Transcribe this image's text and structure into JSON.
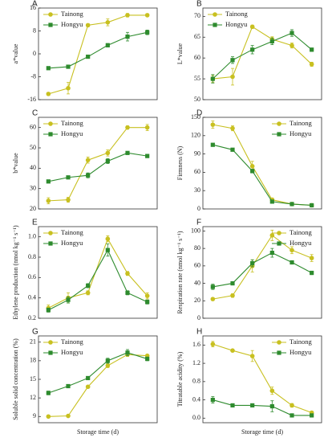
{
  "chart_data": [
    {
      "type": "line",
      "title": "A",
      "y_label": "a*value",
      "x": [
        1,
        3,
        5,
        7,
        9,
        11
      ],
      "xlim": [
        0,
        12
      ],
      "ylim": [
        -16,
        16
      ],
      "yticks": [
        -16,
        -8,
        0,
        8,
        16
      ],
      "legend": "upper left",
      "series": [
        {
          "name": "Tainong",
          "color": "#c8c020",
          "marker": "circle",
          "values": [
            -14,
            -12,
            10,
            11,
            13.5,
            13.5
          ],
          "errors": [
            0.5,
            2,
            0.5,
            1.2,
            0.6,
            0.5
          ]
        },
        {
          "name": "Hongyu",
          "color": "#2e8b2e",
          "marker": "square",
          "values": [
            -5,
            -4.5,
            -1,
            3,
            6,
            7.5
          ],
          "errors": [
            0.4,
            0.4,
            0.4,
            0.6,
            1.5,
            0.8
          ]
        }
      ]
    },
    {
      "type": "line",
      "title": "B",
      "y_label": "L*value",
      "x": [
        1,
        3,
        5,
        7,
        9,
        11
      ],
      "xlim": [
        0,
        12
      ],
      "ylim": [
        50,
        72
      ],
      "yticks": [
        50,
        55,
        60,
        65,
        70
      ],
      "legend": "upper left",
      "series": [
        {
          "name": "Tainong",
          "color": "#c8c020",
          "marker": "circle",
          "values": [
            55,
            55.5,
            67.5,
            64.5,
            63,
            58.5
          ],
          "errors": [
            0.8,
            2,
            0.4,
            0.6,
            0.6,
            0.5
          ]
        },
        {
          "name": "Hongyu",
          "color": "#2e8b2e",
          "marker": "square",
          "values": [
            55,
            59.5,
            62,
            64,
            66,
            62
          ],
          "errors": [
            1,
            0.8,
            1,
            0.8,
            0.8,
            0.4
          ]
        }
      ]
    },
    {
      "type": "line",
      "title": "C",
      "y_label": "b*value",
      "x": [
        1,
        3,
        5,
        7,
        9,
        11
      ],
      "xlim": [
        0,
        12
      ],
      "ylim": [
        20,
        65
      ],
      "yticks": [
        20,
        30,
        40,
        50,
        60
      ],
      "legend": "upper left",
      "series": [
        {
          "name": "Tainong",
          "color": "#c8c020",
          "marker": "circle",
          "values": [
            24,
            24.5,
            44,
            47.5,
            60,
            60
          ],
          "errors": [
            1.5,
            1.2,
            1.5,
            1.5,
            0.8,
            1.5
          ]
        },
        {
          "name": "Hongyu",
          "color": "#2e8b2e",
          "marker": "square",
          "values": [
            33.5,
            35.5,
            36.5,
            43.5,
            47.5,
            46
          ],
          "errors": [
            0.5,
            0.6,
            1.2,
            1.2,
            0.5,
            0.8
          ]
        }
      ]
    },
    {
      "type": "line",
      "title": "D",
      "y_label": "Firmness (N)",
      "x": [
        1,
        3,
        5,
        7,
        9,
        11
      ],
      "xlim": [
        0,
        12
      ],
      "ylim": [
        0,
        150
      ],
      "yticks": [
        0,
        30,
        60,
        90,
        120,
        150
      ],
      "legend": "upper right",
      "series": [
        {
          "name": "Tainong",
          "color": "#c8c020",
          "marker": "circle",
          "values": [
            138,
            132,
            70,
            15,
            8,
            6
          ],
          "errors": [
            6,
            4,
            8,
            3,
            2,
            2
          ]
        },
        {
          "name": "Hongyu",
          "color": "#2e8b2e",
          "marker": "square",
          "values": [
            105,
            97,
            62,
            12,
            8,
            6
          ],
          "errors": [
            2,
            2,
            3,
            2,
            1,
            1
          ]
        }
      ]
    },
    {
      "type": "line",
      "title": "E",
      "y_label": "Ethylene production (nmol kg⁻¹ s⁻¹)",
      "x": [
        1,
        3,
        5,
        7,
        9,
        11
      ],
      "xlim": [
        0,
        12
      ],
      "ylim": [
        0.2,
        1.1
      ],
      "yticks": [
        0.2,
        0.4,
        0.6,
        0.8,
        {
          "value": 1,
          "label": "1.0"
        }
      ],
      "legend": "upper left",
      "series": [
        {
          "name": "Tainong",
          "color": "#c8c020",
          "marker": "circle",
          "values": [
            0.3,
            0.4,
            0.45,
            0.98,
            0.64,
            0.42
          ],
          "errors": [
            0.03,
            0.05,
            0.02,
            0.03,
            0.02,
            0.03
          ]
        },
        {
          "name": "Hongyu",
          "color": "#2e8b2e",
          "marker": "square",
          "values": [
            0.28,
            0.38,
            0.52,
            0.87,
            0.45,
            0.36
          ],
          "errors": [
            0.02,
            0.03,
            0.02,
            0.06,
            0.02,
            0.02
          ]
        }
      ]
    },
    {
      "type": "line",
      "title": "F",
      "y_label": "Respiration rate (nmol kg⁻¹ s⁻¹)",
      "x": [
        1,
        3,
        5,
        7,
        9,
        11
      ],
      "xlim": [
        0,
        12
      ],
      "ylim": [
        0,
        105
      ],
      "yticks": [
        0,
        20,
        40,
        60,
        80,
        100
      ],
      "legend": "upper right",
      "series": [
        {
          "name": "Tainong",
          "color": "#c8c020",
          "marker": "circle",
          "values": [
            22,
            26,
            60,
            95,
            78,
            69
          ],
          "errors": [
            1.5,
            2,
            7,
            6,
            4,
            4
          ]
        },
        {
          "name": "Hongyu",
          "color": "#2e8b2e",
          "marker": "square",
          "values": [
            36,
            40,
            63,
            75,
            64,
            52
          ],
          "errors": [
            3,
            1.5,
            4,
            5,
            1.5,
            2
          ]
        }
      ]
    },
    {
      "type": "line",
      "title": "G",
      "y_label": "Soluble solid concentration (%)",
      "x_label": "Storage time (d)",
      "x": [
        1,
        3,
        5,
        7,
        9,
        11
      ],
      "xlim": [
        0,
        12
      ],
      "ylim": [
        8,
        22
      ],
      "yticks": [
        9,
        12,
        15,
        18,
        21
      ],
      "legend": "upper left",
      "series": [
        {
          "name": "Tainong",
          "color": "#c8c020",
          "marker": "circle",
          "values": [
            9,
            9.1,
            13.8,
            17.2,
            19,
            18.8
          ],
          "errors": [
            0.1,
            0.1,
            0.2,
            0.3,
            0.3,
            0.2
          ]
        },
        {
          "name": "Hongyu",
          "color": "#2e8b2e",
          "marker": "square",
          "values": [
            12.8,
            13.9,
            15.2,
            18,
            19.3,
            18.3
          ],
          "errors": [
            0.3,
            0.2,
            0.2,
            0.4,
            0.5,
            0.3
          ]
        }
      ]
    },
    {
      "type": "line",
      "title": "H",
      "y_label": "Titratable acidity (%)",
      "x_label": "Storage time (d)",
      "x": [
        1,
        3,
        5,
        7,
        9,
        11
      ],
      "xlim": [
        0,
        12
      ],
      "ylim": [
        -0.1,
        1.8
      ],
      "yticks": [
        {
          "value": 0,
          "label": "0.0"
        },
        0.4,
        0.8,
        1.2,
        1.6
      ],
      "legend": "upper right",
      "series": [
        {
          "name": "Tainong",
          "color": "#c8c020",
          "marker": "circle",
          "values": [
            1.62,
            1.48,
            1.36,
            0.6,
            0.28,
            0.12
          ],
          "errors": [
            0.06,
            0.03,
            0.12,
            0.08,
            0.04,
            0.03
          ]
        },
        {
          "name": "Hongyu",
          "color": "#2e8b2e",
          "marker": "square",
          "values": [
            0.4,
            0.28,
            0.28,
            0.26,
            0.06,
            0.06
          ],
          "errors": [
            0.07,
            0.02,
            0.03,
            0.12,
            0.02,
            0.02
          ]
        }
      ]
    }
  ]
}
